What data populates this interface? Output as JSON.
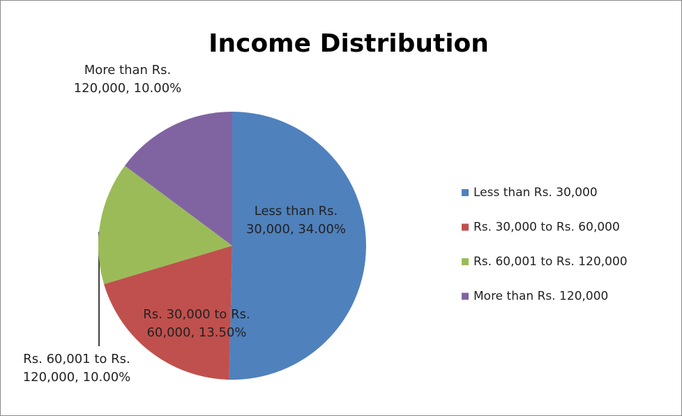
{
  "chart_data": {
    "type": "pie",
    "title": "Income Distribution",
    "categories": [
      "Less than Rs. 30,000",
      "Rs. 30,000 to Rs. 60,000",
      "Rs. 60,001 to Rs. 120,000",
      "More than Rs. 120,000"
    ],
    "values": [
      34,
      13.5,
      10,
      10
    ],
    "value_labels": [
      "34.00%",
      "13.50%",
      "10.00%",
      "10.00%"
    ],
    "label_separator": ", ",
    "colors": [
      "#4f81bd",
      "#c0504d",
      "#9bbb59",
      "#8064a2"
    ],
    "legend": "right"
  }
}
